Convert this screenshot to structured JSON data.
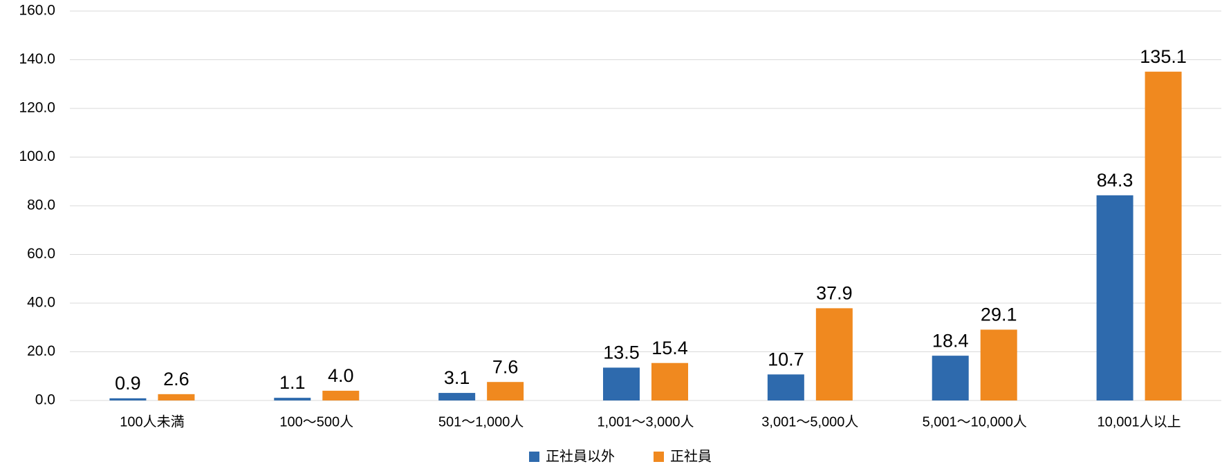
{
  "chart_data": {
    "type": "bar",
    "categories": [
      "100人未満",
      "100〜500人",
      "501〜1,000人",
      "1,001〜3,000人",
      "3,001〜5,000人",
      "5,001〜10,000人",
      "10,001人以上"
    ],
    "series": [
      {
        "name": "正社員以外",
        "color": "#2e6aad",
        "values": [
          0.9,
          1.1,
          3.1,
          13.5,
          10.7,
          18.4,
          84.3
        ],
        "value_labels": [
          "0.9",
          "1.1",
          "3.1",
          "13.5",
          "10.7",
          "18.4",
          "84.3"
        ]
      },
      {
        "name": "正社員",
        "color": "#f0891f",
        "values": [
          2.6,
          4.0,
          7.6,
          15.4,
          37.9,
          29.1,
          135.1
        ],
        "value_labels": [
          "2.6",
          "4.0",
          "7.6",
          "15.4",
          "37.9",
          "29.1",
          "135.1"
        ]
      }
    ],
    "ylim": [
      0,
      160
    ],
    "yticks": [
      {
        "value": 0,
        "label": "0.0"
      },
      {
        "value": 20,
        "label": "20.0"
      },
      {
        "value": 40,
        "label": "40.0"
      },
      {
        "value": 60,
        "label": "60.0"
      },
      {
        "value": 80,
        "label": "80.0"
      },
      {
        "value": 100,
        "label": "100.0"
      },
      {
        "value": 120,
        "label": "120.0"
      },
      {
        "value": 140,
        "label": "140.0"
      },
      {
        "value": 160,
        "label": "160.0"
      }
    ],
    "grid": true,
    "legend": "bottom"
  }
}
